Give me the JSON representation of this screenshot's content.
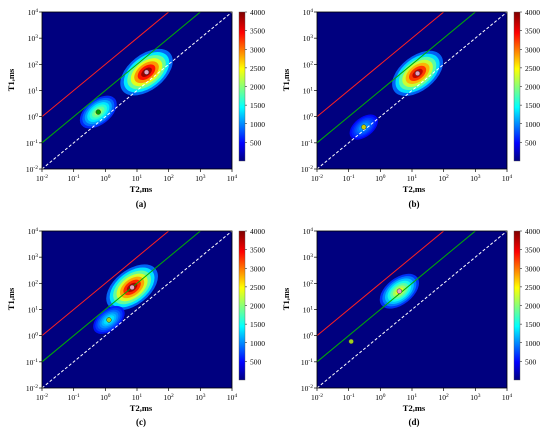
{
  "chart_data": [
    {
      "panel": "(a)",
      "type": "heatmap",
      "xlabel": "T2,ms",
      "ylabel": "T1,ms",
      "x_scale": "log",
      "y_scale": "log",
      "xlim": [
        0.01,
        10000
      ],
      "ylim": [
        0.01,
        10000
      ],
      "x_ticks": [
        "10-2",
        "10-1",
        "100",
        "101",
        "102",
        "103",
        "104"
      ],
      "y_ticks": [
        "10-2",
        "10-1",
        "100",
        "101",
        "102",
        "103",
        "104"
      ],
      "colorbar": {
        "min": 0,
        "max": 4000,
        "ticks": [
          500,
          1000,
          1500,
          2000,
          2500,
          3000,
          3500,
          4000
        ]
      },
      "diagonal_lines": [
        {
          "color": "#ff2020",
          "style": "solid",
          "t1_t2_ratio": 100
        },
        {
          "color": "#00b000",
          "style": "solid",
          "t1_t2_ratio": 10
        },
        {
          "color": "#ffffff",
          "style": "dashed",
          "t1_t2_ratio": 1
        }
      ],
      "blobs": [
        {
          "t2": 20,
          "t1": 50,
          "amplitude": 3900
        },
        {
          "t2": 0.6,
          "t1": 1.5,
          "amplitude": 1900
        }
      ],
      "markers": [
        {
          "t2": 20,
          "t1": 50,
          "color": "#e8a0c0"
        },
        {
          "t2": 0.6,
          "t1": 1.5,
          "color": "#00a000"
        }
      ]
    },
    {
      "panel": "(b)",
      "type": "heatmap",
      "xlabel": "T2,ms",
      "ylabel": "T1,ms",
      "x_scale": "log",
      "y_scale": "log",
      "xlim": [
        0.01,
        10000
      ],
      "ylim": [
        0.01,
        10000
      ],
      "x_ticks": [
        "10-2",
        "10-1",
        "100",
        "101",
        "102",
        "103",
        "104"
      ],
      "y_ticks": [
        "10-2",
        "10-1",
        "100",
        "101",
        "102",
        "103",
        "104"
      ],
      "colorbar": {
        "min": 0,
        "max": 4000,
        "ticks": [
          500,
          1000,
          1500,
          2000,
          2500,
          3000,
          3500,
          4000
        ]
      },
      "diagonal_lines": [
        {
          "color": "#ff2020",
          "style": "solid",
          "t1_t2_ratio": 100
        },
        {
          "color": "#00b000",
          "style": "solid",
          "t1_t2_ratio": 10
        },
        {
          "color": "#ffffff",
          "style": "dashed",
          "t1_t2_ratio": 1
        }
      ],
      "blobs": [
        {
          "t2": 15,
          "t1": 45,
          "amplitude": 3700
        },
        {
          "t2": 0.3,
          "t1": 0.4,
          "amplitude": 800
        }
      ],
      "markers": [
        {
          "t2": 15,
          "t1": 45,
          "color": "#e8a0c0"
        },
        {
          "t2": 0.3,
          "t1": 0.4,
          "color": "#c8d000"
        }
      ]
    },
    {
      "panel": "(c)",
      "type": "heatmap",
      "xlabel": "T2,ms",
      "ylabel": "T1,ms",
      "x_scale": "log",
      "y_scale": "log",
      "xlim": [
        0.01,
        10000
      ],
      "ylim": [
        0.01,
        10000
      ],
      "x_ticks": [
        "10-2",
        "10-1",
        "100",
        "101",
        "102",
        "103",
        "104"
      ],
      "y_ticks": [
        "10-2",
        "10-1",
        "100",
        "101",
        "102",
        "103",
        "104"
      ],
      "colorbar": {
        "min": 0,
        "max": 4000,
        "ticks": [
          500,
          1000,
          1500,
          2000,
          2500,
          3000,
          3500,
          4000
        ]
      },
      "diagonal_lines": [
        {
          "color": "#ff2020",
          "style": "solid",
          "t1_t2_ratio": 100
        },
        {
          "color": "#00b000",
          "style": "solid",
          "t1_t2_ratio": 10
        },
        {
          "color": "#ffffff",
          "style": "dashed",
          "t1_t2_ratio": 1
        }
      ],
      "blobs": [
        {
          "t2": 7,
          "t1": 70,
          "amplitude": 3800
        },
        {
          "t2": 1.3,
          "t1": 4,
          "amplitude": 1200
        }
      ],
      "markers": [
        {
          "t2": 7,
          "t1": 70,
          "color": "#e8a0c0"
        },
        {
          "t2": 1.3,
          "t1": 4,
          "color": "#a0d020"
        }
      ]
    },
    {
      "panel": "(d)",
      "type": "heatmap",
      "xlabel": "T2,ms",
      "ylabel": "T1,ms",
      "x_scale": "log",
      "y_scale": "log",
      "xlim": [
        0.01,
        10000
      ],
      "ylim": [
        0.01,
        10000
      ],
      "x_ticks": [
        "10-2",
        "10-1",
        "100",
        "101",
        "102",
        "103",
        "104"
      ],
      "y_ticks": [
        "10-2",
        "10-1",
        "100",
        "101",
        "102",
        "103",
        "104"
      ],
      "colorbar": {
        "min": 0,
        "max": 4000,
        "ticks": [
          500,
          1000,
          1500,
          2000,
          2500,
          3000,
          3500,
          4000
        ]
      },
      "diagonal_lines": [
        {
          "color": "#ff2020",
          "style": "solid",
          "t1_t2_ratio": 100
        },
        {
          "color": "#00b000",
          "style": "solid",
          "t1_t2_ratio": 10
        },
        {
          "color": "#ffffff",
          "style": "dashed",
          "t1_t2_ratio": 1
        }
      ],
      "blobs": [
        {
          "t2": 4,
          "t1": 50,
          "amplitude": 2200
        }
      ],
      "markers": [
        {
          "t2": 4,
          "t1": 50,
          "color": "#e8a0c0"
        },
        {
          "t2": 0.12,
          "t1": 0.6,
          "color": "#a0d020"
        }
      ]
    }
  ]
}
